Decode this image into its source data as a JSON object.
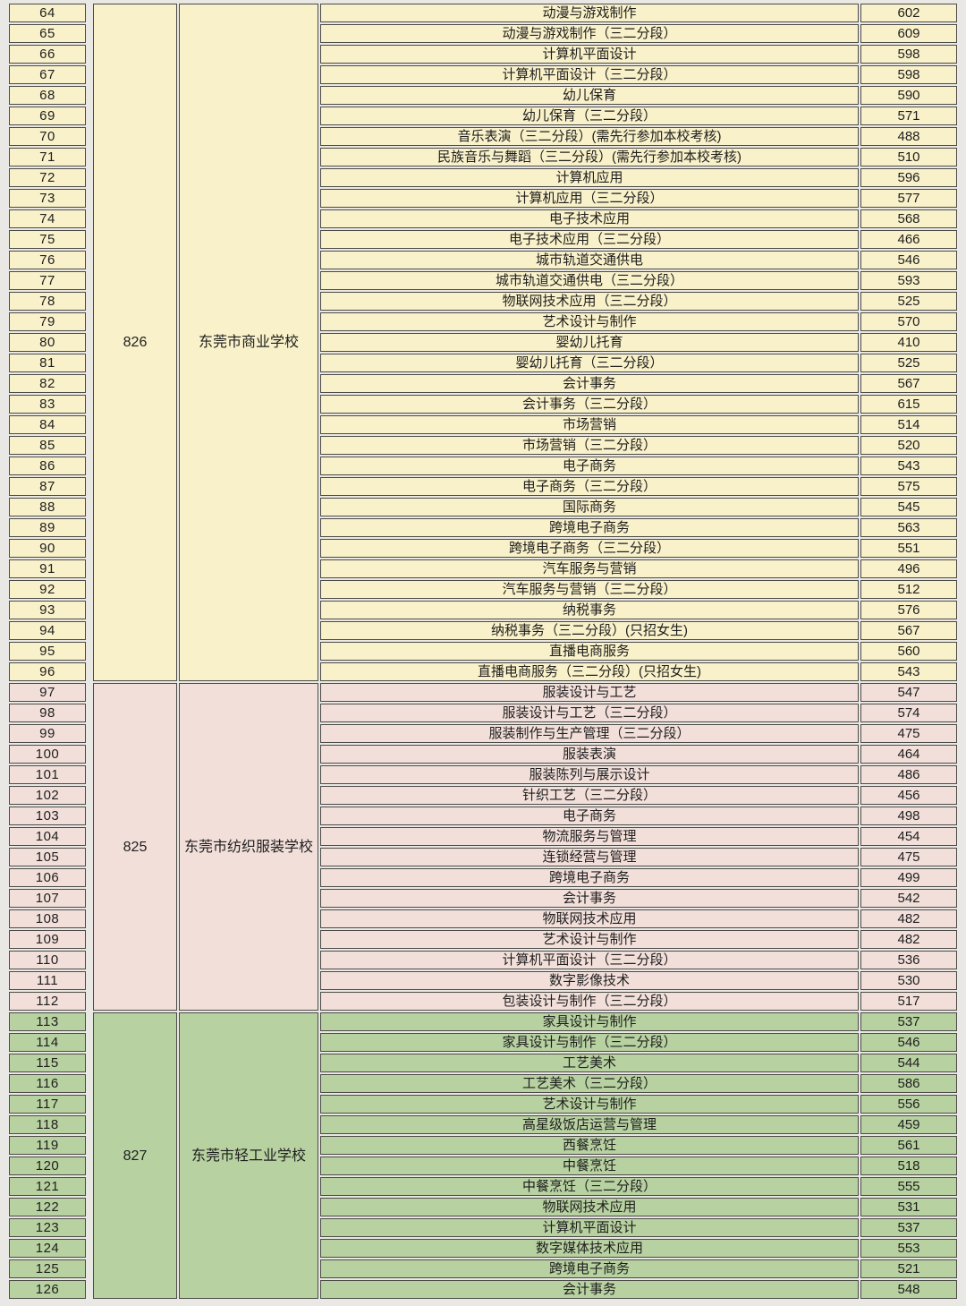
{
  "page": {
    "background": "#eae8e4",
    "border_color": "#4c4a46"
  },
  "table": {
    "groups": [
      {
        "code": "826",
        "school": "东莞市商业学校",
        "bg": "#f9f1c9",
        "rows": [
          [
            "64",
            "动漫与游戏制作",
            "602"
          ],
          [
            "65",
            "动漫与游戏制作（三二分段）",
            "609"
          ],
          [
            "66",
            "计算机平面设计",
            "598"
          ],
          [
            "67",
            "计算机平面设计（三二分段）",
            "598"
          ],
          [
            "68",
            "幼儿保育",
            "590"
          ],
          [
            "69",
            "幼儿保育（三二分段）",
            "571"
          ],
          [
            "70",
            "音乐表演（三二分段）(需先行参加本校考核)",
            "488"
          ],
          [
            "71",
            "民族音乐与舞蹈（三二分段）(需先行参加本校考核)",
            "510"
          ],
          [
            "72",
            "计算机应用",
            "596"
          ],
          [
            "73",
            "计算机应用（三二分段）",
            "577"
          ],
          [
            "74",
            "电子技术应用",
            "568"
          ],
          [
            "75",
            "电子技术应用（三二分段）",
            "466"
          ],
          [
            "76",
            "城市轨道交通供电",
            "546"
          ],
          [
            "77",
            "城市轨道交通供电（三二分段）",
            "593"
          ],
          [
            "78",
            "物联网技术应用（三二分段）",
            "525"
          ],
          [
            "79",
            "艺术设计与制作",
            "570"
          ],
          [
            "80",
            "婴幼儿托育",
            "410"
          ],
          [
            "81",
            "婴幼儿托育（三二分段）",
            "525"
          ],
          [
            "82",
            "会计事务",
            "567"
          ],
          [
            "83",
            "会计事务（三二分段）",
            "615"
          ],
          [
            "84",
            "市场营销",
            "514"
          ],
          [
            "85",
            "市场营销（三二分段）",
            "520"
          ],
          [
            "86",
            "电子商务",
            "543"
          ],
          [
            "87",
            "电子商务（三二分段）",
            "575"
          ],
          [
            "88",
            "国际商务",
            "545"
          ],
          [
            "89",
            "跨境电子商务",
            "563"
          ],
          [
            "90",
            "跨境电子商务（三二分段）",
            "551"
          ],
          [
            "91",
            "汽车服务与营销",
            "496"
          ],
          [
            "92",
            "汽车服务与营销（三二分段）",
            "512"
          ],
          [
            "93",
            "纳税事务",
            "576"
          ],
          [
            "94",
            "纳税事务（三二分段）(只招女生)",
            "567"
          ],
          [
            "95",
            "直播电商服务",
            "560"
          ],
          [
            "96",
            "直播电商服务（三二分段）(只招女生)",
            "543"
          ]
        ]
      },
      {
        "code": "825",
        "school": "东莞市纺织服装学校",
        "bg": "#f2dfda",
        "rows": [
          [
            "97",
            "服装设计与工艺",
            "547"
          ],
          [
            "98",
            "服装设计与工艺（三二分段）",
            "574"
          ],
          [
            "99",
            "服装制作与生产管理（三二分段）",
            "475"
          ],
          [
            "100",
            "服装表演",
            "464"
          ],
          [
            "101",
            "服装陈列与展示设计",
            "486"
          ],
          [
            "102",
            "针织工艺（三二分段）",
            "456"
          ],
          [
            "103",
            "电子商务",
            "498"
          ],
          [
            "104",
            "物流服务与管理",
            "454"
          ],
          [
            "105",
            "连锁经营与管理",
            "475"
          ],
          [
            "106",
            "跨境电子商务",
            "499"
          ],
          [
            "107",
            "会计事务",
            "542"
          ],
          [
            "108",
            "物联网技术应用",
            "482"
          ],
          [
            "109",
            "艺术设计与制作",
            "482"
          ],
          [
            "110",
            "计算机平面设计（三二分段）",
            "536"
          ],
          [
            "111",
            "数字影像技术",
            "530"
          ],
          [
            "112",
            "包装设计与制作（三二分段）",
            "517"
          ]
        ]
      },
      {
        "code": "827",
        "school": "东莞市轻工业学校",
        "bg": "#b7d1a0",
        "rows": [
          [
            "113",
            "家具设计与制作",
            "537"
          ],
          [
            "114",
            "家具设计与制作（三二分段）",
            "546"
          ],
          [
            "115",
            "工艺美术",
            "544"
          ],
          [
            "116",
            "工艺美术（三二分段）",
            "586"
          ],
          [
            "117",
            "艺术设计与制作",
            "556"
          ],
          [
            "118",
            "高星级饭店运营与管理",
            "459"
          ],
          [
            "119",
            "西餐烹饪",
            "561"
          ],
          [
            "120",
            "中餐烹饪",
            "518"
          ],
          [
            "121",
            "中餐烹饪（三二分段）",
            "555"
          ],
          [
            "122",
            "物联网技术应用",
            "531"
          ],
          [
            "123",
            "计算机平面设计",
            "537"
          ],
          [
            "124",
            "数字媒体技术应用",
            "553"
          ],
          [
            "125",
            "跨境电子商务",
            "521"
          ],
          [
            "126",
            "会计事务",
            "548"
          ]
        ]
      }
    ]
  }
}
